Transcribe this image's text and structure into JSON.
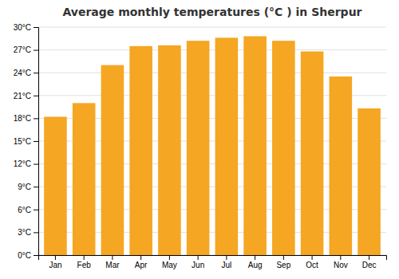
{
  "chart_data": {
    "type": "bar",
    "title": "Average monthly temperatures (°C ) in Sherpur",
    "categories": [
      "Jan",
      "Feb",
      "Mar",
      "Apr",
      "May",
      "Jun",
      "Jul",
      "Aug",
      "Sep",
      "Oct",
      "Nov",
      "Dec"
    ],
    "values": [
      18.2,
      20.0,
      25.0,
      27.5,
      27.6,
      28.2,
      28.6,
      28.8,
      28.2,
      26.8,
      23.5,
      19.3
    ],
    "color": "#F5A623",
    "ylim": [
      0,
      30
    ],
    "yticks": [
      {
        "value": 0,
        "label": "0°C"
      },
      {
        "value": 3,
        "label": "3°C"
      },
      {
        "value": 6,
        "label": "6°C"
      },
      {
        "value": 9,
        "label": "9°C"
      },
      {
        "value": 12,
        "label": "12°C"
      },
      {
        "value": 15,
        "label": "15°C"
      },
      {
        "value": 18,
        "label": "18°C"
      },
      {
        "value": 21,
        "label": "21°C"
      },
      {
        "value": 24,
        "label": "24°C"
      },
      {
        "value": 27,
        "label": "27°C"
      },
      {
        "value": 30,
        "label": "30°C"
      }
    ],
    "grid": true
  }
}
